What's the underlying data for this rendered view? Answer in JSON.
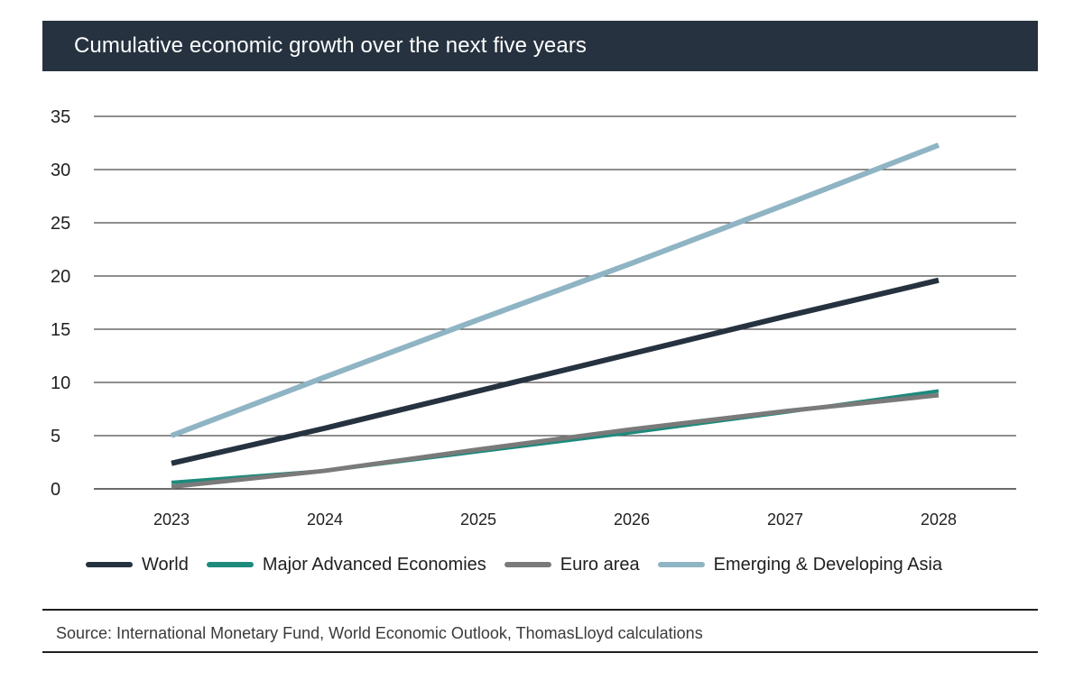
{
  "chart_data": {
    "type": "line",
    "title": "Cumulative economic growth over the next five years",
    "categories": [
      "2023",
      "2024",
      "2025",
      "2026",
      "2027",
      "2028"
    ],
    "y_ticks": [
      "0",
      "5",
      "10",
      "15",
      "20",
      "25",
      "30",
      "35"
    ],
    "ylim": [
      0,
      35
    ],
    "grid": "horizontal",
    "legend_position": "bottom",
    "series": [
      {
        "name": "World",
        "color": "#26323f",
        "values": [
          2.4,
          5.7,
          9.2,
          12.7,
          16.2,
          19.6
        ]
      },
      {
        "name": "Major Advanced Economies",
        "color": "#1d8a7c",
        "values": [
          0.6,
          1.7,
          3.5,
          5.3,
          7.2,
          9.2
        ]
      },
      {
        "name": "Euro area",
        "color": "#7a7a7a",
        "values": [
          0.2,
          1.7,
          3.7,
          5.6,
          7.3,
          8.8
        ]
      },
      {
        "name": "Emerging & Developing Asia",
        "color": "#8fb4c4",
        "values": [
          5.0,
          10.5,
          15.9,
          21.2,
          26.7,
          32.3
        ]
      }
    ]
  },
  "footer": {
    "source": "Source: International Monetary Fund, World Economic Outlook, ThomasLloyd calculations"
  }
}
